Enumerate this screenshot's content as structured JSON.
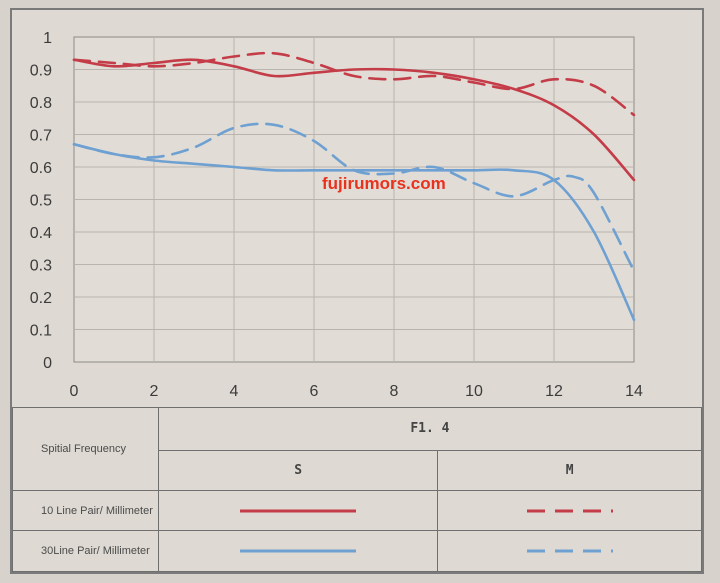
{
  "chart_data": {
    "type": "line",
    "title": "",
    "xlabel": "",
    "ylabel": "",
    "xlim": [
      0,
      14
    ],
    "ylim": [
      0,
      1
    ],
    "x_ticks": [
      "0",
      "2",
      "4",
      "6",
      "8",
      "10",
      "12",
      "14"
    ],
    "y_ticks": [
      "0",
      "0.1",
      "0.2",
      "0.3",
      "0.4",
      "0.5",
      "0.6",
      "0.7",
      "0.8",
      "0.9",
      "1"
    ],
    "grid": true,
    "series": [
      {
        "name": "10 Line Pair/ Millimeter S",
        "color": "#c43c48",
        "dash": "solid",
        "x": [
          0,
          1,
          2,
          3,
          4,
          5,
          6,
          7,
          8,
          9,
          10,
          11,
          12,
          13,
          14
        ],
        "y": [
          0.93,
          0.91,
          0.92,
          0.93,
          0.91,
          0.88,
          0.89,
          0.9,
          0.9,
          0.89,
          0.87,
          0.84,
          0.79,
          0.7,
          0.56
        ]
      },
      {
        "name": "10 Line Pair/ Millimeter M",
        "color": "#c43c48",
        "dash": "dashed",
        "x": [
          0,
          1,
          2,
          3,
          4,
          5,
          6,
          7,
          8,
          9,
          10,
          11,
          12,
          13,
          14
        ],
        "y": [
          0.93,
          0.92,
          0.91,
          0.92,
          0.94,
          0.95,
          0.92,
          0.88,
          0.87,
          0.88,
          0.86,
          0.84,
          0.87,
          0.85,
          0.76
        ]
      },
      {
        "name": "30Line Pair/ Millimeter S",
        "color": "#6fa0d2",
        "dash": "solid",
        "x": [
          0,
          1,
          2,
          3,
          4,
          5,
          6,
          7,
          8,
          9,
          10,
          11,
          12,
          13,
          14
        ],
        "y": [
          0.67,
          0.64,
          0.62,
          0.61,
          0.6,
          0.59,
          0.59,
          0.59,
          0.59,
          0.59,
          0.59,
          0.59,
          0.56,
          0.4,
          0.13
        ]
      },
      {
        "name": "30Line Pair/ Millimeter M",
        "color": "#6fa0d2",
        "dash": "dashed",
        "x": [
          0,
          1,
          2,
          3,
          4,
          5,
          6,
          7,
          8,
          9,
          10,
          11,
          12,
          12.5,
          13,
          14
        ],
        "y": [
          0.67,
          0.64,
          0.63,
          0.66,
          0.72,
          0.73,
          0.68,
          0.59,
          0.58,
          0.6,
          0.55,
          0.51,
          0.56,
          0.57,
          0.52,
          0.28
        ]
      }
    ],
    "annotations": [
      "fujirumors.com"
    ]
  },
  "legend": {
    "spatial_frequency_label": "Spitial Frequency",
    "aperture_label": "F1. 4",
    "col_s": "S",
    "col_m": "M",
    "row1_label": "10 Line Pair/ Millimeter",
    "row2_label": "30Line Pair/ Millimeter"
  },
  "colors": {
    "red": "#c43c48",
    "blue": "#6fa0d2",
    "grid": "#b9b5ae",
    "watermark": "#e8321e"
  }
}
